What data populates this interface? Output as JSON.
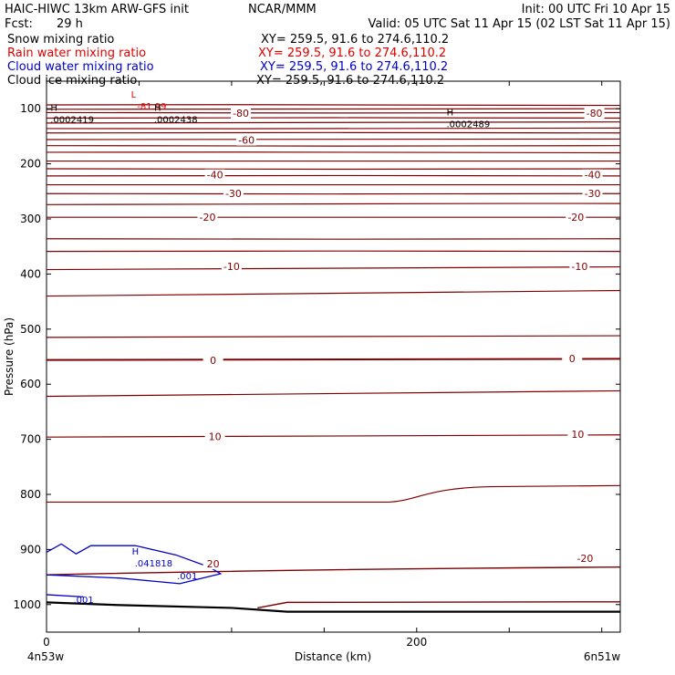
{
  "header": {
    "model": "HAIC-HIWC 13km ARW-GFS init",
    "org": "NCAR/MMM",
    "init": "Init: 00 UTC Fri 10 Apr 15",
    "fcst_label": "Fcst:",
    "fcst_value": "29 h",
    "valid": "Valid: 05 UTC Sat 11 Apr 15 (02 LST Sat 11 Apr 15)"
  },
  "fields": [
    {
      "label": "Snow mixing ratio",
      "xy": "XY= 259.5, 91.6 to 274.6,110.2",
      "color": "#000000"
    },
    {
      "label": "Rain water mixing ratio",
      "xy": "XY= 259.5, 91.6 to 274.6,110.2",
      "color": "#e00000"
    },
    {
      "label": "Cloud water mixing ratio",
      "xy": "XY= 259.5, 91.6 to 274.6,110.2",
      "color": "#0000c8"
    },
    {
      "label": "Cloud ice mixing ratio",
      "xy": "XY= 259.5, 91.6 to 274.6,110.2",
      "color": "#000000"
    }
  ],
  "chart_data": {
    "type": "contour cross-section",
    "xlabel": "Distance (km)",
    "ylabel": "Pressure (hPa)",
    "x_ticks": [
      0,
      200
    ],
    "x_end_labels": [
      "4n53w",
      "6n51w"
    ],
    "y_ticks": [
      100,
      200,
      300,
      400,
      500,
      600,
      700,
      800,
      900,
      1000
    ],
    "xlim": [
      0,
      310
    ],
    "ylim": [
      1050,
      50
    ],
    "isotherm_color": "#800000",
    "temperature_contour_labels": [
      {
        "value": "-80",
        "x": 105,
        "p": 108
      },
      {
        "value": "-80",
        "x": 296,
        "p": 108
      },
      {
        "value": "-60",
        "x": 108,
        "p": 157
      },
      {
        "value": "-40",
        "x": 91,
        "p": 220
      },
      {
        "value": "-40",
        "x": 295,
        "p": 220
      },
      {
        "value": "-30",
        "x": 101,
        "p": 254
      },
      {
        "value": "-30",
        "x": 295,
        "p": 254
      },
      {
        "value": "-20",
        "x": 87,
        "p": 297
      },
      {
        "value": "-20",
        "x": 286,
        "p": 297
      },
      {
        "value": "-10",
        "x": 100,
        "p": 386
      },
      {
        "value": "-10",
        "x": 288,
        "p": 386
      },
      {
        "value": "0",
        "x": 90,
        "p": 557
      },
      {
        "value": "0",
        "x": 284,
        "p": 553
      },
      {
        "value": "10",
        "x": 91,
        "p": 695
      },
      {
        "value": "10",
        "x": 287,
        "p": 691
      },
      {
        "value": "20",
        "x": 90,
        "p": 926
      },
      {
        "value": "-20",
        "x": 291,
        "p": 916
      }
    ],
    "extrema": [
      {
        "type": "L",
        "value": "-81.99",
        "x": 47,
        "p": 80,
        "color": "#e00000"
      },
      {
        "type": "H",
        "value": ".0002419",
        "x": 4,
        "p": 104,
        "color": "#000000"
      },
      {
        "type": "H",
        "value": ".0002438",
        "x": 60,
        "p": 104,
        "color": "#000000"
      },
      {
        "type": "H",
        "value": ".0002489",
        "x": 218,
        "p": 112,
        "color": "#000000"
      },
      {
        "type": "H",
        "value": ".041818",
        "x": 48,
        "p": 909,
        "color": "#0000c8"
      }
    ],
    "cloud_water_labels": [
      {
        "value": ".001",
        "x": 76,
        "p": 947
      },
      {
        "value": ".001",
        "x": 20,
        "p": 990
      }
    ]
  }
}
